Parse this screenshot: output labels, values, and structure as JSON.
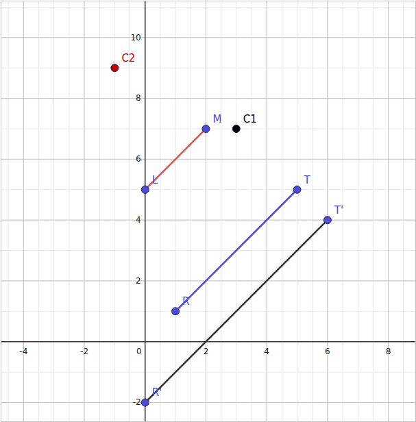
{
  "chart_data": {
    "type": "scatter",
    "xlim": [
      -4.74,
      8.9
    ],
    "ylim": [
      -2.63,
      11.2
    ],
    "xticks": [
      -4,
      -2,
      0,
      2,
      4,
      6,
      8
    ],
    "yticks": [
      -2,
      2,
      4,
      6,
      8,
      10
    ],
    "grid": true,
    "points": [
      {
        "name": "L",
        "x": 0,
        "y": 5,
        "color": "#4c4cdb"
      },
      {
        "name": "M",
        "x": 2,
        "y": 7,
        "color": "#4c4cdb"
      },
      {
        "name": "C1",
        "x": 3,
        "y": 7,
        "color": "#000000"
      },
      {
        "name": "C2",
        "x": -1,
        "y": 9,
        "color": "#c00000"
      },
      {
        "name": "T",
        "x": 5,
        "y": 5,
        "color": "#4c4cdb"
      },
      {
        "name": "R",
        "x": 1,
        "y": 1,
        "color": "#4c4cdb"
      },
      {
        "name": "T'",
        "x": 6,
        "y": 4,
        "color": "#4c4cdb"
      },
      {
        "name": "R'",
        "x": 0,
        "y": -2,
        "color": "#4c4cdb"
      }
    ],
    "segments": [
      {
        "from": "L",
        "to": "M",
        "color": "#d9534f"
      },
      {
        "from": "R",
        "to": "T",
        "color": "#4c4cdb"
      },
      {
        "from": "R'",
        "to": "T'",
        "color": "#333333"
      }
    ]
  }
}
